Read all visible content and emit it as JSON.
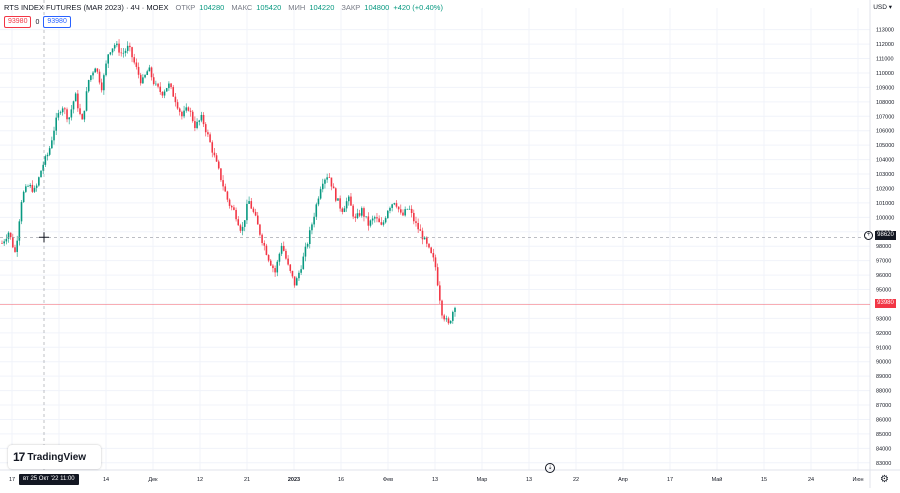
{
  "legend": {
    "title": "RTS INDEX FUTURES (MAR 2023) · 4Ч · MOEX",
    "open_label": "ОТКР",
    "open_value": "104280",
    "high_label": "МАКС",
    "high_value": "105420",
    "low_label": "МИН",
    "low_value": "104220",
    "close_label": "ЗАКР",
    "close_value": "104800",
    "change": "+420 (+0.40%)",
    "sell_price": "93980",
    "spread": "0",
    "buy_price": "93980"
  },
  "currency": "USD",
  "logo_text": "TradingView",
  "crosshair": {
    "time_label": "вт 25 Окт '22 11:00",
    "price_label": "98620"
  },
  "last_price_label": "93980",
  "colors": {
    "up": "#089981",
    "down": "#f23645",
    "grid": "#f0f3fa",
    "text": "#131722"
  },
  "chart_data": {
    "type": "candlestick",
    "price_ticks": [
      "113000",
      "112000",
      "111000",
      "110000",
      "109000",
      "108000",
      "107000",
      "106000",
      "105000",
      "104000",
      "103000",
      "102000",
      "101000",
      "100000",
      "99000",
      "98000",
      "97000",
      "96000",
      "95000",
      "94000",
      "93000",
      "92000",
      "91000",
      "90000",
      "89000",
      "88000",
      "87000",
      "86000",
      "85000",
      "84000",
      "83000"
    ],
    "time_ticks": [
      "17",
      "Ноя",
      "14",
      "Дек",
      "12",
      "21",
      "2023",
      "16",
      "Фев",
      "13",
      "Мар",
      "13",
      "22",
      "Апр",
      "17",
      "Май",
      "15",
      "24",
      "Июн"
    ],
    "ylim": [
      82500,
      114500
    ],
    "series": [
      {
        "t": 0,
        "v": 98200
      },
      {
        "t": 1,
        "v": 99000
      },
      {
        "t": 2,
        "v": 97500
      },
      {
        "t": 3,
        "v": 101500
      },
      {
        "t": 4,
        "v": 102200
      },
      {
        "t": 5,
        "v": 101800
      },
      {
        "t": 6,
        "v": 103500
      },
      {
        "t": 7,
        "v": 104500
      },
      {
        "t": 8,
        "v": 106500
      },
      {
        "t": 9,
        "v": 107800
      },
      {
        "t": 10,
        "v": 106800
      },
      {
        "t": 11,
        "v": 108500
      },
      {
        "t": 12,
        "v": 106500
      },
      {
        "t": 13,
        "v": 109500
      },
      {
        "t": 14,
        "v": 110500
      },
      {
        "t": 15,
        "v": 109000
      },
      {
        "t": 16,
        "v": 111500
      },
      {
        "t": 17,
        "v": 112000
      },
      {
        "t": 18,
        "v": 111300
      },
      {
        "t": 19,
        "v": 111800
      },
      {
        "t": 20,
        "v": 110500
      },
      {
        "t": 21,
        "v": 109300
      },
      {
        "t": 22,
        "v": 110300
      },
      {
        "t": 23,
        "v": 109100
      },
      {
        "t": 24,
        "v": 108600
      },
      {
        "t": 25,
        "v": 109200
      },
      {
        "t": 26,
        "v": 108200
      },
      {
        "t": 27,
        "v": 107000
      },
      {
        "t": 28,
        "v": 107600
      },
      {
        "t": 29,
        "v": 106300
      },
      {
        "t": 30,
        "v": 106900
      },
      {
        "t": 31,
        "v": 105500
      },
      {
        "t": 32,
        "v": 104000
      },
      {
        "t": 33,
        "v": 102500
      },
      {
        "t": 34,
        "v": 101000
      },
      {
        "t": 35,
        "v": 100300
      },
      {
        "t": 36,
        "v": 99000
      },
      {
        "t": 37,
        "v": 101200
      },
      {
        "t": 38,
        "v": 100000
      },
      {
        "t": 39,
        "v": 98500
      },
      {
        "t": 40,
        "v": 97200
      },
      {
        "t": 41,
        "v": 96200
      },
      {
        "t": 42,
        "v": 98200
      },
      {
        "t": 43,
        "v": 96500
      },
      {
        "t": 44,
        "v": 95300
      },
      {
        "t": 45,
        "v": 96800
      },
      {
        "t": 46,
        "v": 98500
      },
      {
        "t": 47,
        "v": 100500
      },
      {
        "t": 48,
        "v": 102500
      },
      {
        "t": 49,
        "v": 103000
      },
      {
        "t": 50,
        "v": 101500
      },
      {
        "t": 51,
        "v": 100500
      },
      {
        "t": 52,
        "v": 101300
      },
      {
        "t": 53,
        "v": 99800
      },
      {
        "t": 54,
        "v": 100500
      },
      {
        "t": 55,
        "v": 99500
      },
      {
        "t": 56,
        "v": 100000
      },
      {
        "t": 57,
        "v": 99300
      },
      {
        "t": 58,
        "v": 100700
      },
      {
        "t": 59,
        "v": 101200
      },
      {
        "t": 60,
        "v": 100000
      },
      {
        "t": 61,
        "v": 100700
      },
      {
        "t": 62,
        "v": 99600
      },
      {
        "t": 63,
        "v": 98800
      },
      {
        "t": 64,
        "v": 97800
      },
      {
        "t": 65,
        "v": 96800
      },
      {
        "t": 66,
        "v": 93500
      },
      {
        "t": 67,
        "v": 92500
      },
      {
        "t": 68,
        "v": 93980
      }
    ],
    "last_price": 93980,
    "crosshair_price": 98620
  }
}
